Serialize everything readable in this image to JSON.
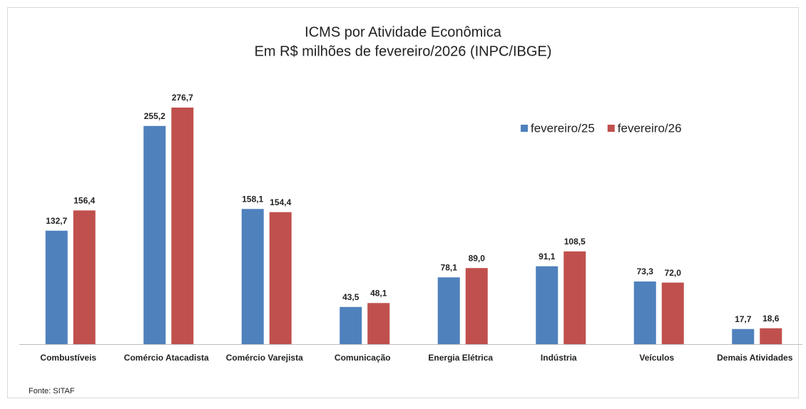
{
  "chart_data": {
    "type": "bar",
    "title": "ICMS por Atividade Econômica",
    "subtitle": "Em R$ milhões de fevereiro/2026 (INPC/IBGE)",
    "source": "Fonte: SITAF",
    "categories": [
      "Combustíveis",
      "Comércio Atacadista",
      "Comércio Varejista",
      "Comunicação",
      "Energia Elétrica",
      "Indústria",
      "Veículos",
      "Demais Atividades"
    ],
    "series": [
      {
        "name": "fevereiro/25",
        "color": "#4f81bd",
        "values": [
          132.7,
          255.2,
          158.1,
          43.5,
          78.1,
          91.1,
          73.3,
          17.7
        ],
        "value_labels": [
          "132,7",
          "255,2",
          "158,1",
          "43,5",
          "78,1",
          "91,1",
          "73,3",
          "17,7"
        ]
      },
      {
        "name": "fevereiro/26",
        "color": "#c0504d",
        "values": [
          156.4,
          276.7,
          154.4,
          48.1,
          89.0,
          108.5,
          72.0,
          18.6
        ],
        "value_labels": [
          "156,4",
          "276,7",
          "154,4",
          "48,1",
          "89,0",
          "108,5",
          "72,0",
          "18,6"
        ]
      }
    ],
    "ylim": [
      0,
      300
    ],
    "legend": "top-right"
  }
}
